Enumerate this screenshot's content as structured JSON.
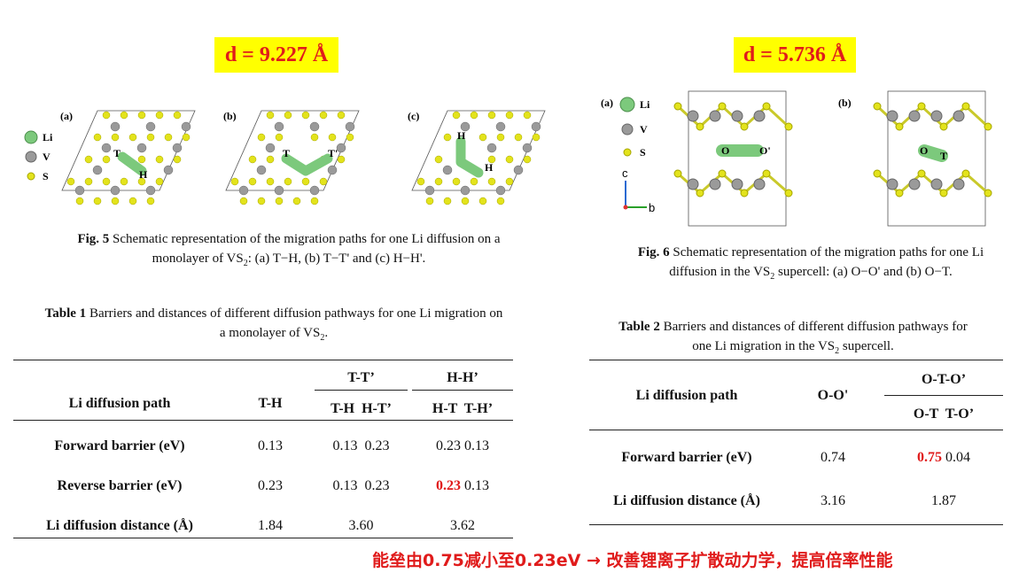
{
  "left": {
    "distance_label": "d = 9.227 Å",
    "panel_labels": [
      "(a)",
      "(b)",
      "(c)"
    ],
    "legend": [
      "Li",
      "V",
      "S"
    ],
    "site_labels": {
      "a": [
        "T",
        "H"
      ],
      "b": [
        "T",
        "T'"
      ],
      "c": [
        "H",
        "H"
      ]
    },
    "fig_caption_bold": "Fig. 5",
    "fig_caption_line1": " Schematic representation of the migration paths for one Li diffusion on a",
    "fig_caption_line2a": "monolayer of VS",
    "fig_caption_line2sub": "2",
    "fig_caption_line2b": ": (a) T−H, (b) T−T' and (c) H−H'.",
    "table_caption_bold": "Table 1",
    "table_caption_line1": " Barriers and distances of different diffusion pathways for one Li migration on",
    "table_caption_line2a": "a monolayer of VS",
    "table_caption_line2sub": "2",
    "table_caption_line2b": ".",
    "table": {
      "col_header": "Li diffusion path",
      "th": "T-H",
      "tt_group": "T-T’",
      "tt_sub": "T-H  H-T’",
      "hh_group": "H-H’",
      "hh_sub": "H-T  T-H’",
      "rows": [
        {
          "label": "Forward barrier (eV)",
          "th": "0.13",
          "tt": "0.13  0.23",
          "hh_a": "0.23",
          "hh_b": " 0.13"
        },
        {
          "label": "Reverse barrier (eV)",
          "th": "0.23",
          "tt": "0.13  0.23",
          "hh_a": "0.23",
          "hh_b": " 0.13"
        },
        {
          "label": "Li diffusion distance (Å)",
          "th": "1.84",
          "tt": "3.60",
          "hh_a": "3.62",
          "hh_b": ""
        }
      ]
    }
  },
  "right": {
    "distance_label": "d = 5.736 Å",
    "panel_labels": [
      "(a)",
      "(b)"
    ],
    "legend": [
      "Li",
      "V",
      "S"
    ],
    "axes": {
      "c": "c",
      "b": "b"
    },
    "site_labels": {
      "a": [
        "O",
        "O'"
      ],
      "b": [
        "O",
        "T"
      ]
    },
    "fig_caption_bold": "Fig. 6",
    "fig_caption_line1": " Schematic representation of the migration paths for one Li",
    "fig_caption_line2a": "diffusion in the VS",
    "fig_caption_line2sub": "2",
    "fig_caption_line2b": " supercell: (a) O−O' and (b) O−T.",
    "table_caption_bold": "Table 2",
    "table_caption_line1": " Barriers and distances of different diffusion pathways for",
    "table_caption_line2a": "one Li migration in the VS",
    "table_caption_line2sub": "2",
    "table_caption_line2b": " supercell.",
    "table": {
      "col_header": "Li diffusion path",
      "oo": "O-O'",
      "oto_group": "O-T-O’",
      "oto_sub": "O-T  T-O’",
      "rows": [
        {
          "label": "Forward barrier (eV)",
          "oo": "0.74",
          "oto_a": "0.75",
          "oto_b": " 0.04"
        },
        {
          "label": "Li diffusion distance (Å)",
          "oo": "3.16",
          "oto_a": "1.87",
          "oto_b": ""
        }
      ]
    }
  },
  "conclusion": "能垒由0.75减小至0.23eV → 改善锂离子扩散动力学，提高倍率性能",
  "colors": {
    "highlight": "#ffff00",
    "accent_red": "#e01b1b",
    "li": "#7cc97c",
    "v": "#9a9a9a",
    "s": "#e3e31c"
  }
}
